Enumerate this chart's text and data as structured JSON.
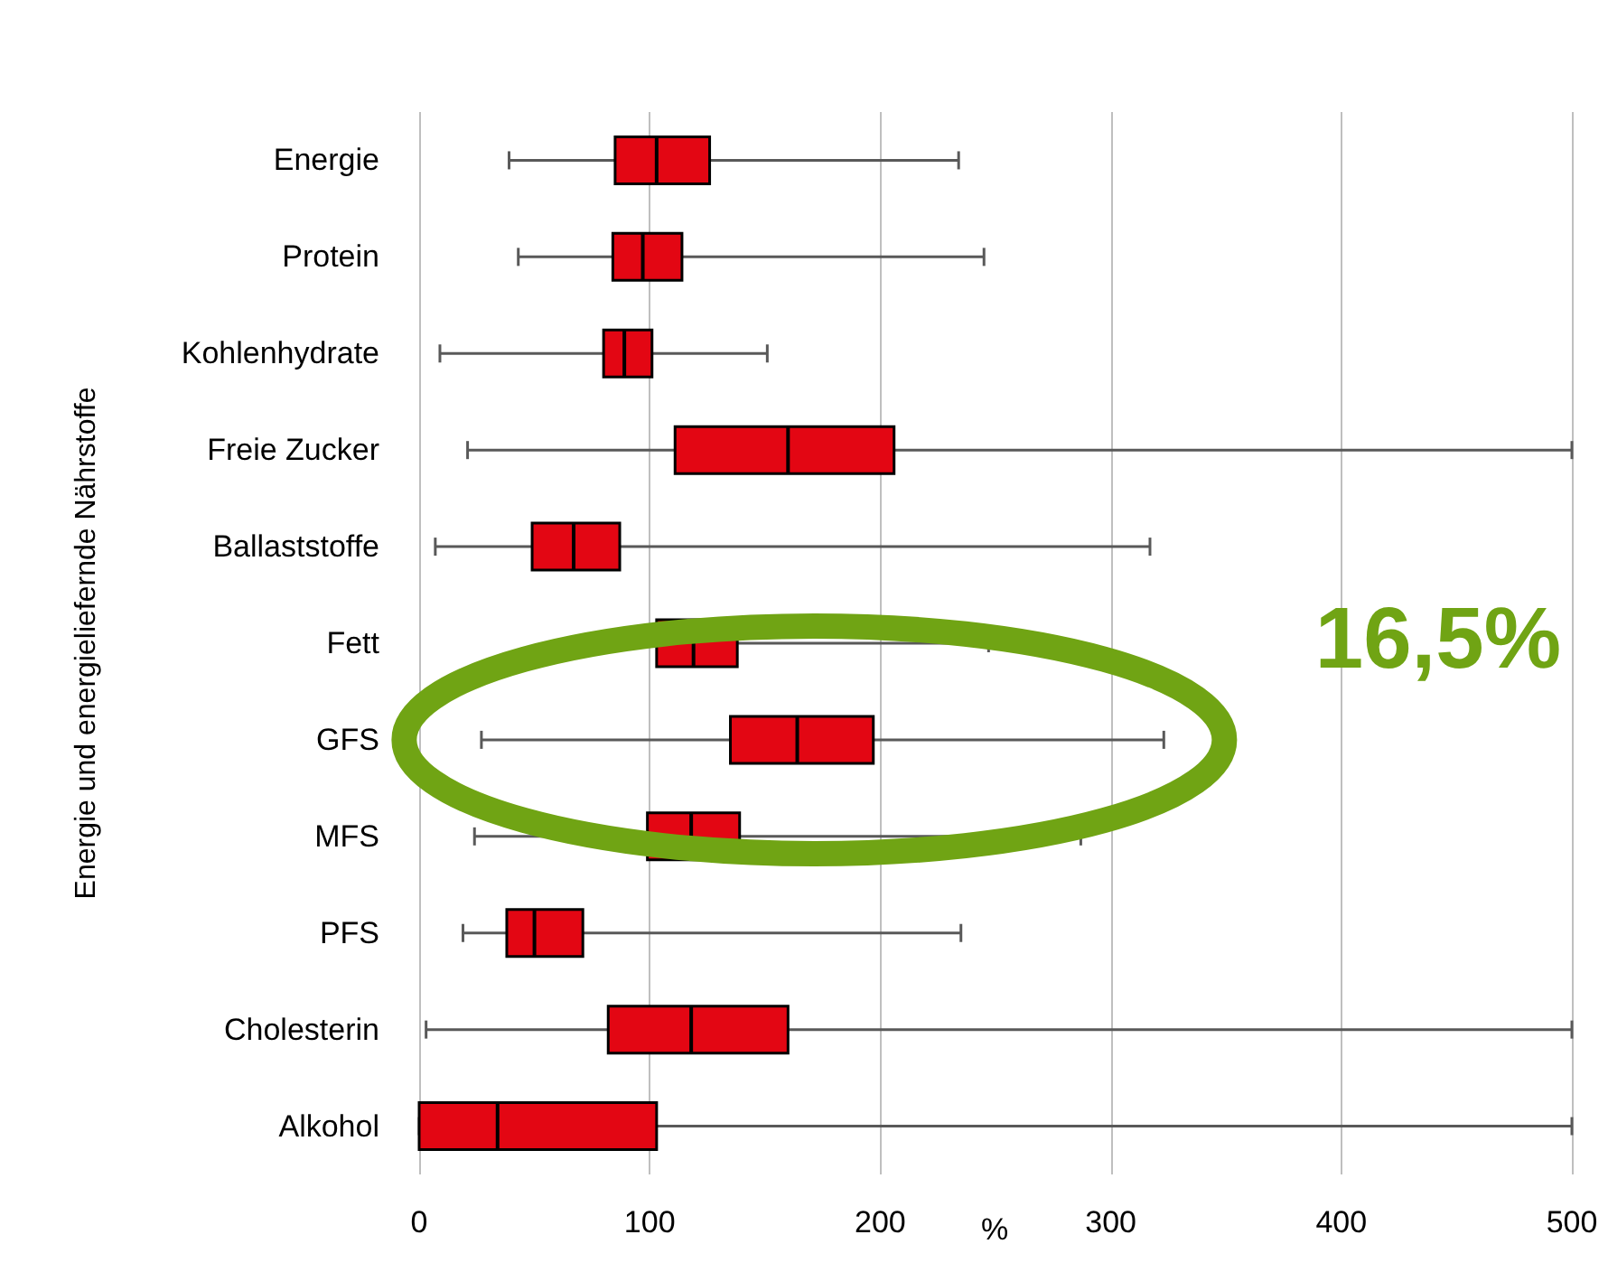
{
  "chart_data": {
    "type": "box",
    "orientation": "horizontal",
    "ylabel": "Energie und energieliefernde Nährstoffe",
    "xlabel": "%",
    "categories": [
      "Energie",
      "Protein",
      "Kohlenhydrate",
      "Freie Zucker",
      "Ballaststoffe",
      "Fett",
      "GFS",
      "MFS",
      "PFS",
      "Cholesterin",
      "Alkohol"
    ],
    "boxes": [
      {
        "low": 39,
        "q1": 85,
        "median": 103,
        "q3": 126,
        "high": 234
      },
      {
        "low": 43,
        "q1": 84,
        "median": 97,
        "q3": 114,
        "high": 245
      },
      {
        "low": 9,
        "q1": 80,
        "median": 89,
        "q3": 101,
        "high": 151
      },
      {
        "low": 21,
        "q1": 111,
        "median": 160,
        "q3": 206,
        "high": 500
      },
      {
        "low": 7,
        "q1": 49,
        "median": 67,
        "q3": 87,
        "high": 317
      },
      {
        "low": null,
        "q1": 103,
        "median": 119,
        "q3": 138,
        "high": 247
      },
      {
        "low": 27,
        "q1": 135,
        "median": 164,
        "q3": 197,
        "high": 323
      },
      {
        "low": 24,
        "q1": 99,
        "median": 118,
        "q3": 139,
        "high": 287
      },
      {
        "low": 19,
        "q1": 38,
        "median": 50,
        "q3": 71,
        "high": 235
      },
      {
        "low": 3,
        "q1": 82,
        "median": 118,
        "q3": 160,
        "high": 500
      },
      {
        "low": 0,
        "q1": 0,
        "median": 34,
        "q3": 103,
        "high": 500
      }
    ],
    "color": "#e30613",
    "xlim": [
      0,
      500
    ],
    "xticks": [
      0,
      100,
      200,
      300,
      400,
      500
    ],
    "grid": "x",
    "annotations": [
      "16,5%"
    ]
  }
}
